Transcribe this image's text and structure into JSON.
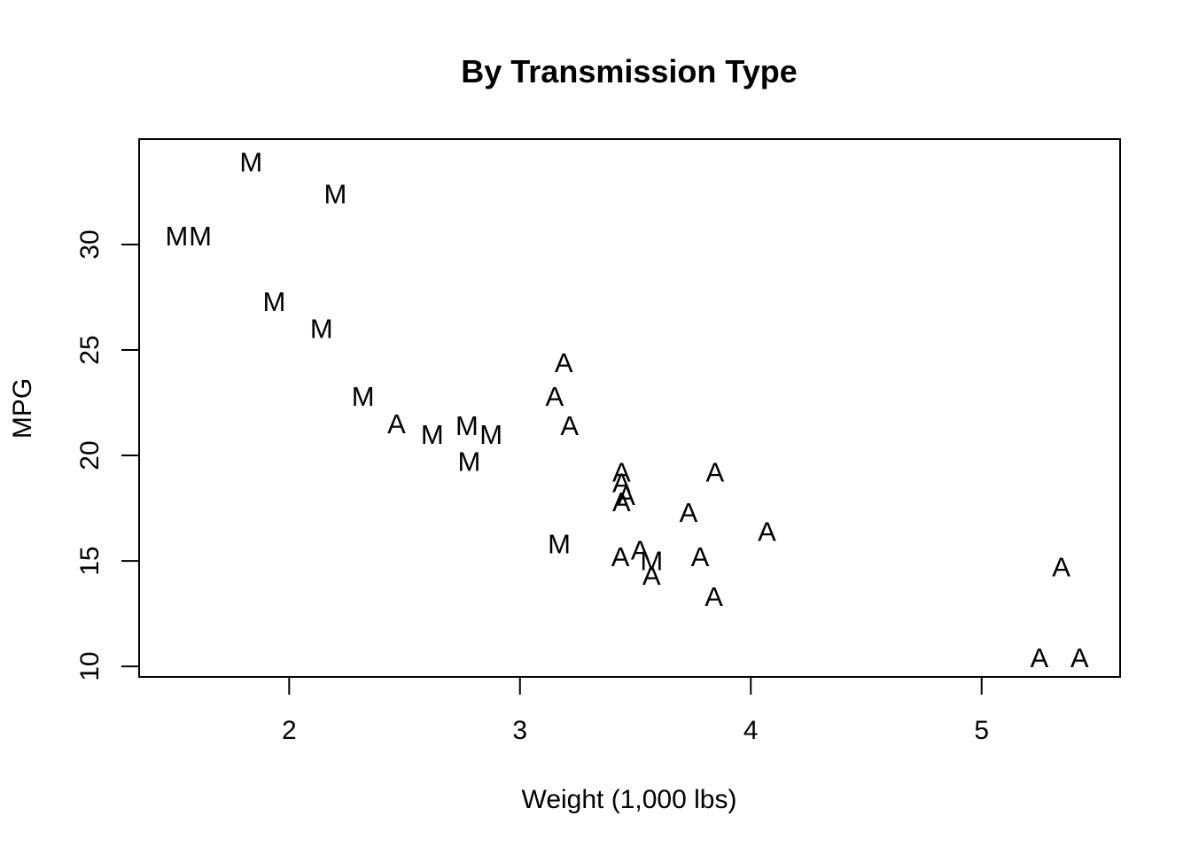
{
  "chart_data": {
    "type": "scatter",
    "title": "By Transmission Type",
    "xlabel": "Weight (1,000 lbs)",
    "ylabel": "MPG",
    "xlim": [
      1.35,
      5.6
    ],
    "ylim": [
      9.5,
      35.0
    ],
    "x_ticks": [
      2,
      3,
      4,
      5
    ],
    "y_ticks": [
      10,
      15,
      20,
      25,
      30
    ],
    "x_tick_labels": [
      "2",
      "3",
      "4",
      "5"
    ],
    "y_tick_labels": [
      "10",
      "15",
      "20",
      "25",
      "30"
    ],
    "grid": false,
    "legend": "none",
    "colors": {
      "ink": "#000000",
      "background": "#ffffff"
    },
    "points": [
      {
        "x": 1.835,
        "y": 33.9,
        "label": "M"
      },
      {
        "x": 2.2,
        "y": 32.4,
        "label": "M"
      },
      {
        "x": 1.513,
        "y": 30.4,
        "label": "M"
      },
      {
        "x": 1.615,
        "y": 30.4,
        "label": "M"
      },
      {
        "x": 1.935,
        "y": 27.3,
        "label": "M"
      },
      {
        "x": 2.14,
        "y": 26.0,
        "label": "M"
      },
      {
        "x": 2.32,
        "y": 22.8,
        "label": "M"
      },
      {
        "x": 2.465,
        "y": 21.5,
        "label": "A"
      },
      {
        "x": 2.62,
        "y": 21.0,
        "label": "M"
      },
      {
        "x": 2.77,
        "y": 21.4,
        "label": "M"
      },
      {
        "x": 2.875,
        "y": 21.0,
        "label": "M"
      },
      {
        "x": 2.78,
        "y": 19.7,
        "label": "M"
      },
      {
        "x": 3.19,
        "y": 24.4,
        "label": "A"
      },
      {
        "x": 3.15,
        "y": 22.8,
        "label": "A"
      },
      {
        "x": 3.215,
        "y": 21.4,
        "label": "A"
      },
      {
        "x": 3.17,
        "y": 15.8,
        "label": "M"
      },
      {
        "x": 3.44,
        "y": 19.2,
        "label": "A"
      },
      {
        "x": 3.44,
        "y": 18.7,
        "label": "A"
      },
      {
        "x": 3.46,
        "y": 18.1,
        "label": "A"
      },
      {
        "x": 3.44,
        "y": 17.8,
        "label": "A"
      },
      {
        "x": 3.845,
        "y": 19.2,
        "label": "A"
      },
      {
        "x": 3.73,
        "y": 17.3,
        "label": "A"
      },
      {
        "x": 4.07,
        "y": 16.4,
        "label": "A"
      },
      {
        "x": 3.435,
        "y": 15.2,
        "label": "A"
      },
      {
        "x": 3.52,
        "y": 15.5,
        "label": "A"
      },
      {
        "x": 3.57,
        "y": 15.0,
        "label": "M"
      },
      {
        "x": 3.57,
        "y": 14.3,
        "label": "A"
      },
      {
        "x": 3.78,
        "y": 15.2,
        "label": "A"
      },
      {
        "x": 3.84,
        "y": 13.3,
        "label": "A"
      },
      {
        "x": 5.345,
        "y": 14.7,
        "label": "A"
      },
      {
        "x": 5.25,
        "y": 10.4,
        "label": "A"
      },
      {
        "x": 5.424,
        "y": 10.4,
        "label": "A"
      }
    ]
  }
}
